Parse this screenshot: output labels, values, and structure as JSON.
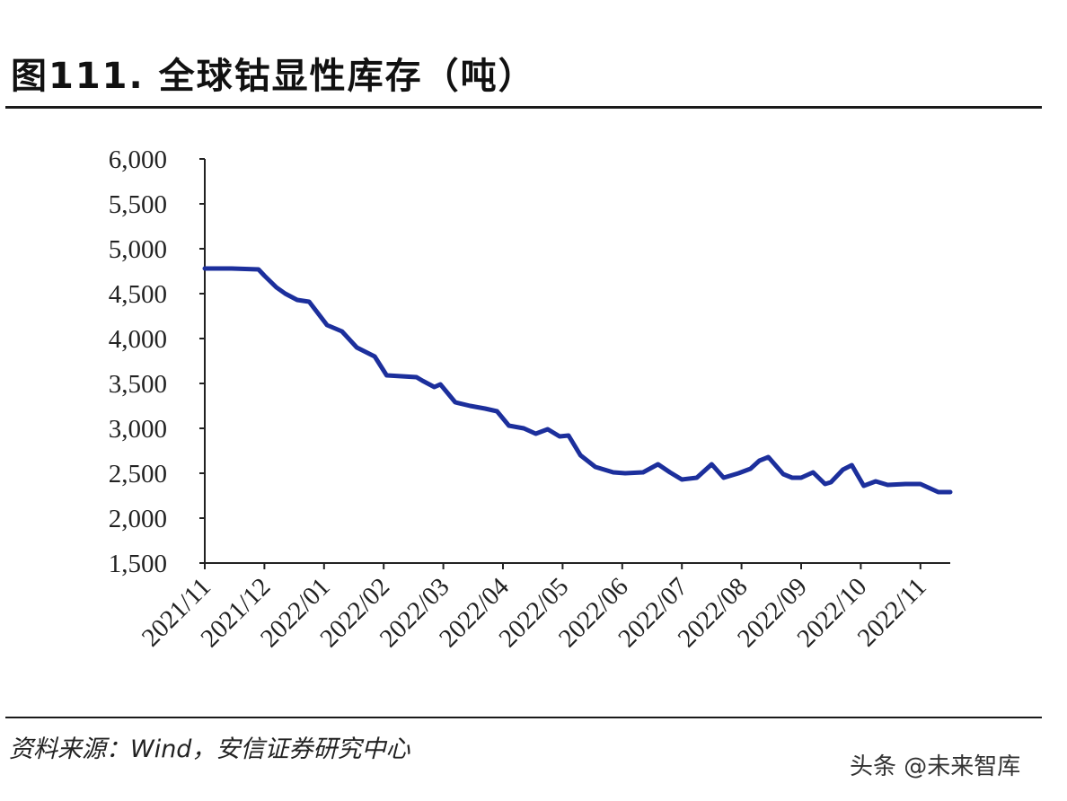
{
  "header": {
    "title": "图111. 全球钴显性库存（吨）"
  },
  "footer": {
    "source": "资料来源：Wind，安信证券研究中心",
    "watermark": "头条 @未来智库"
  },
  "colors": {
    "line": "#1c2f9c",
    "axis": "#222222",
    "rule": "#1a1a1a"
  },
  "chart_data": {
    "type": "line",
    "title": "全球钴显性库存（吨）",
    "xlabel": "",
    "ylabel": "",
    "ylim": [
      1500,
      6000
    ],
    "yticks": [
      6000,
      5500,
      5000,
      4500,
      4000,
      3500,
      3000,
      2500,
      2000,
      1500
    ],
    "ytick_labels": [
      "6,000",
      "5,500",
      "5,000",
      "4,500",
      "4,000",
      "3,500",
      "3,000",
      "2,500",
      "2,000",
      "1,500"
    ],
    "categories": [
      "2021/11",
      "2021/12",
      "2022/01",
      "2022/02",
      "2022/03",
      "2022/04",
      "2022/05",
      "2022/06",
      "2022/07",
      "2022/08",
      "2022/09",
      "2022/10",
      "2022/11"
    ],
    "grid": false,
    "series": [
      {
        "name": "全球钴显性库存",
        "x": [
          0,
          0.45,
          0.9,
          1.0,
          1.2,
          1.35,
          1.55,
          1.75,
          2.05,
          2.3,
          2.55,
          2.85,
          3.05,
          3.3,
          3.55,
          3.65,
          3.85,
          3.95,
          4.2,
          4.45,
          4.7,
          4.9,
          5.1,
          5.35,
          5.55,
          5.75,
          5.95,
          6.1,
          6.3,
          6.55,
          6.85,
          7.05,
          7.35,
          7.6,
          7.8,
          8.0,
          8.25,
          8.5,
          8.7,
          8.95,
          9.15,
          9.3,
          9.45,
          9.7,
          9.85,
          10.0,
          10.2,
          10.4,
          10.5,
          10.7,
          10.85,
          11.05,
          11.25,
          11.45,
          11.75,
          12.0,
          12.3,
          12.5
        ],
        "values": [
          4780,
          4780,
          4770,
          4700,
          4570,
          4500,
          4430,
          4410,
          4150,
          4080,
          3900,
          3800,
          3590,
          3580,
          3570,
          3530,
          3460,
          3490,
          3290,
          3250,
          3220,
          3190,
          3030,
          3000,
          2940,
          2990,
          2910,
          2920,
          2700,
          2570,
          2510,
          2500,
          2510,
          2600,
          2510,
          2430,
          2450,
          2600,
          2450,
          2500,
          2550,
          2640,
          2680,
          2490,
          2450,
          2450,
          2510,
          2380,
          2400,
          2540,
          2590,
          2360,
          2410,
          2370,
          2380,
          2380,
          2290,
          2290
        ]
      }
    ]
  }
}
